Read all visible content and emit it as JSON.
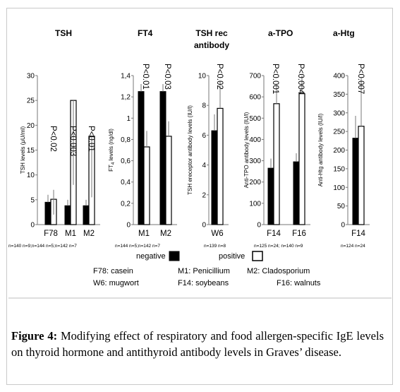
{
  "chart_data": [
    {
      "type": "bar",
      "title": "TSH",
      "ylabel": "TSH levels (μU/ml)",
      "ylim": [
        0,
        30
      ],
      "yticks": [
        "0",
        "5",
        "10",
        "15",
        "20",
        "25",
        "30"
      ],
      "categories": [
        "F78",
        "M1",
        "M2"
      ],
      "n_labels": "n=140 n=9;n=144  n=5;n=142 n=7",
      "series": [
        {
          "name": "negative",
          "values": [
            4.5,
            3.8,
            3.8
          ],
          "error_high": [
            6.0,
            5.0,
            5.0
          ]
        },
        {
          "name": "positive",
          "values": [
            5.1,
            25.0,
            17.8
          ],
          "error_high": [
            7.0,
            25.0,
            17.8
          ],
          "error_low": [
            2.0,
            8.0,
            5.5
          ]
        }
      ],
      "annotations": [
        "P<0.02",
        "P<0.003",
        "P<0.01"
      ]
    },
    {
      "type": "bar",
      "title": "FT4",
      "ylabel": "FT4 levels (ng/dl)",
      "ylim": [
        0,
        1.4
      ],
      "yticks": [
        "0",
        "0,2",
        "0,4",
        "0,6",
        "0,8",
        "1",
        "1,2",
        "1,4"
      ],
      "categories": [
        "M1",
        "M2"
      ],
      "n_labels": "n=144 n=5;n=142 n=7",
      "series": [
        {
          "name": "negative",
          "values": [
            1.25,
            1.25
          ],
          "error_high": [
            1.32,
            1.32
          ]
        },
        {
          "name": "positive",
          "values": [
            0.73,
            0.83
          ],
          "error_high": [
            0.88,
            0.97
          ]
        }
      ],
      "annotations": [
        "P<0.01",
        "P<0.03"
      ]
    },
    {
      "type": "bar",
      "title": "TSH rec antibody",
      "ylabel": "TSH ereceptor antibody levels (IU/l)",
      "ylim": [
        0,
        10
      ],
      "yticks": [
        "0",
        "2",
        "4",
        "6",
        "8",
        "10"
      ],
      "categories": [
        "W6"
      ],
      "n_labels": "n=139 n=8",
      "series": [
        {
          "name": "negative",
          "values": [
            6.3
          ],
          "error_high": [
            7.4
          ]
        },
        {
          "name": "positive",
          "values": [
            7.8
          ],
          "error_high": [
            9.6
          ]
        }
      ],
      "annotations": [
        "P<0.02"
      ]
    },
    {
      "type": "bar",
      "title": "a-TPO",
      "ylabel": "Anti-TPO antibody levels (IU/l)",
      "ylim": [
        0,
        700
      ],
      "yticks": [
        "0",
        "100",
        "200",
        "300",
        "400",
        "500",
        "600",
        "700"
      ],
      "categories": [
        "F14",
        "F16"
      ],
      "n_labels": "n=125 n=24; n=140 n=9",
      "series": [
        {
          "name": "negative",
          "values": [
            265,
            295
          ],
          "error_high": [
            310,
            335
          ]
        },
        {
          "name": "positive",
          "values": [
            568,
            615
          ],
          "error_high": [
            655,
            700
          ]
        }
      ],
      "annotations": [
        "P<0.001",
        "P<0.004"
      ]
    },
    {
      "type": "bar",
      "title": "a-Htg",
      "ylabel": "Anti-Htg antibody levels (IU/l)",
      "ylim": [
        0,
        400
      ],
      "yticks": [
        "0",
        "50",
        "100",
        "150",
        "200",
        "250",
        "300",
        "350",
        "400"
      ],
      "categories": [
        "F14"
      ],
      "n_labels": "n=124 n=24",
      "series": [
        {
          "name": "negative",
          "values": [
            232
          ],
          "error_high": [
            292
          ]
        },
        {
          "name": "positive",
          "values": [
            264
          ],
          "error_high": [
            393
          ]
        }
      ],
      "annotations": [
        "P<0.007"
      ]
    }
  ],
  "legend": {
    "negative_label": "negative",
    "positive_label": "positive",
    "negative_color": "#000000",
    "positive_color": "#ffffff"
  },
  "allergens": {
    "f78": "F78: casein",
    "m1": "M1: Penicillium",
    "m2": "M2: Cladosporium",
    "w6": "W6: mugwort",
    "f14": "F14: soybeans",
    "f16": "F16: walnuts"
  },
  "caption": {
    "label": "Figure 4:",
    "text": " Modifying effect of respiratory and food allergen-specific IgE levels on thyroid hormone and antithyroid antibody levels in Graves’ disease."
  }
}
